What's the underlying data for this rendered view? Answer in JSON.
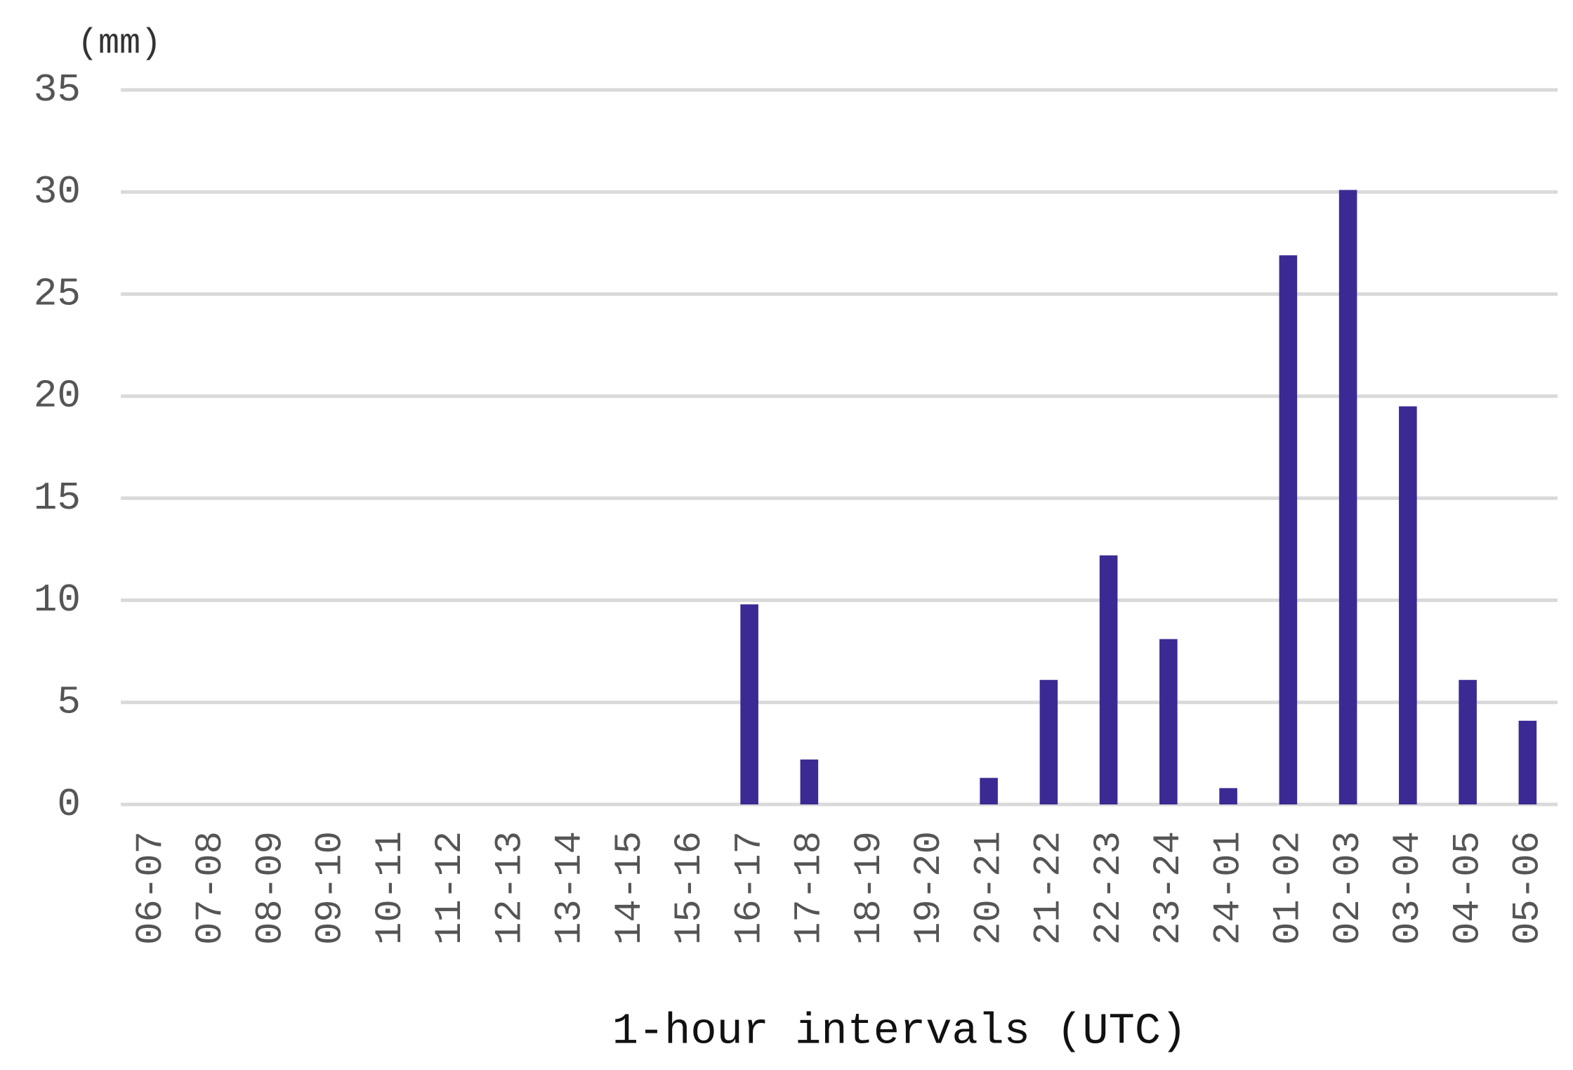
{
  "chart_data": {
    "type": "bar",
    "y_unit_label": "(mm)",
    "x_label": "1-hour intervals (UTC)",
    "categories": [
      "06-07",
      "07-08",
      "08-09",
      "09-10",
      "10-11",
      "11-12",
      "12-13",
      "13-14",
      "14-15",
      "15-16",
      "16-17",
      "17-18",
      "18-19",
      "19-20",
      "20-21",
      "21-22",
      "22-23",
      "23-24",
      "24-01",
      "01-02",
      "02-03",
      "03-04",
      "04-05",
      "05-06"
    ],
    "values": [
      0,
      0,
      0,
      0,
      0,
      0,
      0,
      0,
      0,
      0,
      9.8,
      2.2,
      0,
      0,
      1.3,
      6.1,
      12.2,
      8.1,
      0.8,
      26.9,
      30.1,
      19.5,
      6.1,
      4.1
    ],
    "color": "#3b2a93",
    "ylim": [
      0,
      35
    ],
    "yticks": [
      0,
      5,
      10,
      15,
      20,
      25,
      30,
      35
    ],
    "grid": true
  }
}
